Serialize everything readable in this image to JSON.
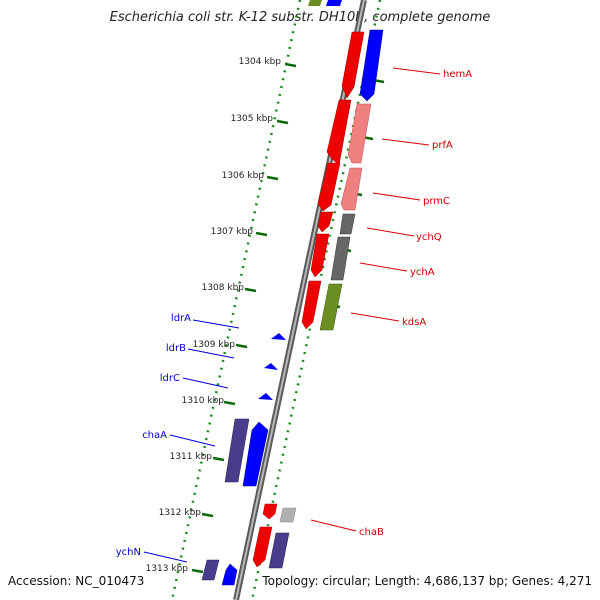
{
  "title": "Escherichia coli str. K-12 substr. DH10B, complete genome",
  "footer": {
    "accession": "Accession: NC_010473",
    "summary": "Topology: circular; Length: 4,686,137 bp; Genes: 4,271"
  },
  "colors": {
    "forward_gene": "#ff0000",
    "reverse_gene": "#0000ff",
    "cog_pink": "#f08080",
    "cog_gray": "#666666",
    "cog_olive": "#6b8e23",
    "cog_purple": "#483d8b",
    "forward_label": "#cc0000",
    "reverse_label": "#0000cc",
    "tick": "#006400",
    "backbone": "#808080"
  },
  "ticks": [
    "1304 kbp",
    "1305 kbp",
    "1306 kbp",
    "1307 kbp",
    "1308 kbp",
    "1309 kbp",
    "1310 kbp",
    "1311 kbp",
    "1312 kbp",
    "1313 kbp"
  ],
  "forward_genes": [
    "hemA",
    "prfA",
    "prmC",
    "ychQ",
    "ychA",
    "kdsA",
    "chaB"
  ],
  "reverse_genes": [
    "ldrA",
    "ldrB",
    "ldrC",
    "chaA",
    "ychN"
  ]
}
